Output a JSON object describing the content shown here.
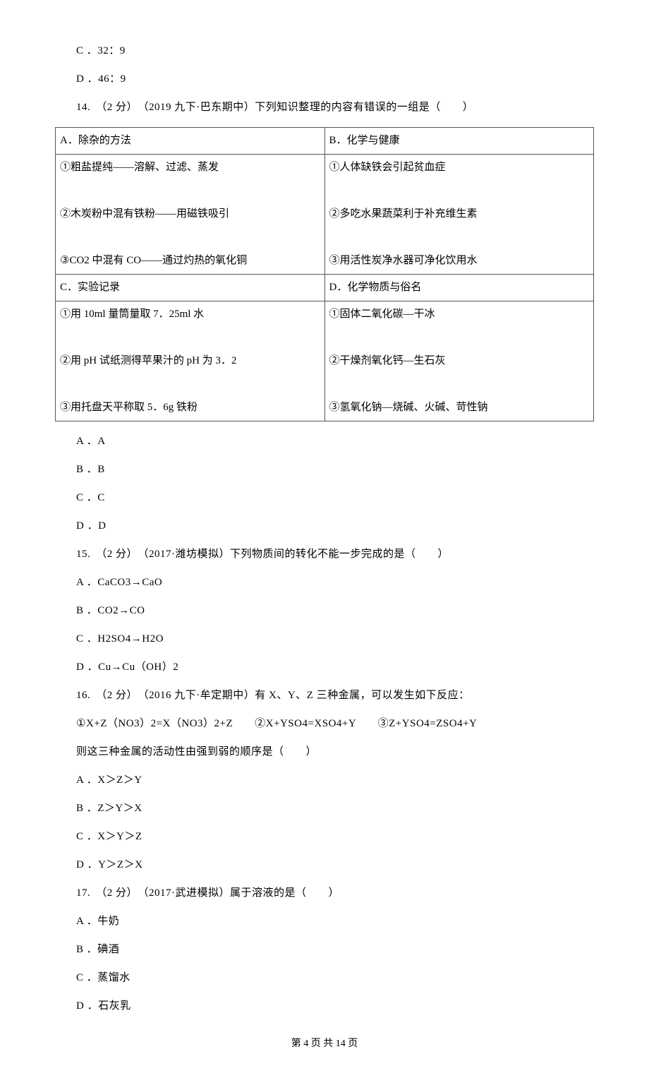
{
  "q13": {
    "C": "C ．32：9",
    "D": "D ．46：9"
  },
  "q14": {
    "stem": "14.　（2 分）　（2019 九下·巴东期中）下列知识整理的内容有错误的一组是（　　）",
    "table": {
      "A_head": "A．除杂的方法",
      "B_head": "B．化学与健康",
      "A_body": "①粗盐提纯——溶解、过滤、蒸发\n\n②木炭粉中混有铁粉——用磁铁吸引\n\n③CO2 中混有 CO——通过灼热的氧化铜",
      "B_body": "①人体缺铁会引起贫血症\n\n②多吃水果蔬菜利于补充维生素\n\n③用活性炭净水器可净化饮用水",
      "C_head": "C．实验记录",
      "D_head": "D．化学物质与俗名",
      "C_body": "①用 10ml 量筒量取 7．25ml 水\n\n②用 pH 试纸测得苹果汁的 pH 为 3．2\n\n③用托盘天平称取 5．6g 铁粉",
      "D_body": "①固体二氧化碳—干冰\n\n②干燥剂氧化钙—生石灰\n\n③氢氧化钠—烧碱、火碱、苛性钠"
    },
    "A": "A ．A",
    "B": "B ．B",
    "C": "C ．C",
    "D": "D ．D"
  },
  "q15": {
    "stem": "15.　（2 分）　（2017·潍坊模拟）下列物质间的转化不能一步完成的是（　　）",
    "A": "A ．CaCO3→CaO",
    "B": "B ．CO2→CO",
    "C": "C ．H2SO4→H2O",
    "D": "D ．Cu→Cu（OH）2"
  },
  "q16": {
    "stem": "16.　（2 分）　（2016 九下·牟定期中）有 X、Y、Z 三种金属，可以发生如下反应：",
    "eq": "①X+Z（NO3）2=X（NO3）2+Z　　②X+YSO4=XSO4+Y　　③Z+YSO4=ZSO4+Y",
    "sub": "则这三种金属的活动性由强到弱的顺序是（　　）",
    "A": "A ．X＞Z＞Y",
    "B": "B ．Z＞Y＞X",
    "C": "C ．X＞Y＞Z",
    "D": "D ．Y＞Z＞X"
  },
  "q17": {
    "stem": "17.　（2 分）　（2017·武进模拟）属于溶液的是（　　）",
    "A": "A ．牛奶",
    "B": "B ．碘酒",
    "C": "C ．蒸馏水",
    "D": "D ．石灰乳"
  },
  "footer": "第 4 页 共 14 页"
}
